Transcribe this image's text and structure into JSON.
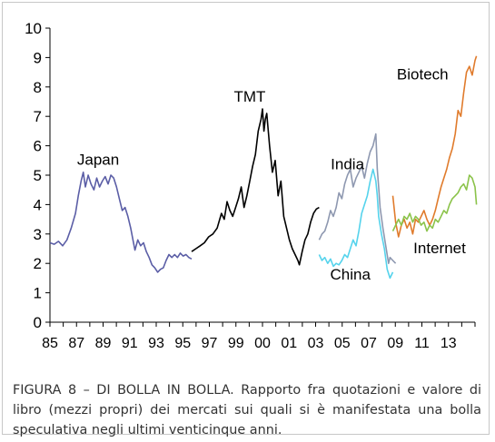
{
  "figure": {
    "label": "FIGURA 8 – DI BOLLA IN BOLLA.",
    "text": " Rapporto fra quotazioni e valore di libro (mezzi propri) dei mercati sui quali si è manifestata una bolla speculativa negli ultimi venticinque anni."
  },
  "chart_data": {
    "type": "line",
    "title": "",
    "xlabel": "",
    "ylabel": "",
    "xlim": [
      1985,
      2015
    ],
    "ylim": [
      0,
      10
    ],
    "grid": false,
    "legend": "none (series labeled inline)",
    "x_ticks": [
      "85",
      "87",
      "89",
      "91",
      "93",
      "95",
      "97",
      "99",
      "00",
      "01",
      "03",
      "05",
      "07",
      "09",
      "11",
      "13"
    ],
    "y_ticks": [
      "0",
      "1",
      "2",
      "3",
      "4",
      "5",
      "6",
      "7",
      "8",
      "9",
      "10"
    ],
    "series": [
      {
        "name": "Japan",
        "color": "#5b5ea6",
        "points": [
          [
            1985,
            2.7
          ],
          [
            1985.3,
            2.65
          ],
          [
            1985.6,
            2.75
          ],
          [
            1985.9,
            2.6
          ],
          [
            1986.2,
            2.8
          ],
          [
            1986.5,
            3.2
          ],
          [
            1986.8,
            3.7
          ],
          [
            1987.0,
            4.3
          ],
          [
            1987.2,
            4.8
          ],
          [
            1987.35,
            5.1
          ],
          [
            1987.5,
            4.6
          ],
          [
            1987.7,
            5.0
          ],
          [
            1987.9,
            4.7
          ],
          [
            1988.1,
            4.5
          ],
          [
            1988.3,
            4.9
          ],
          [
            1988.5,
            4.6
          ],
          [
            1988.7,
            4.8
          ],
          [
            1988.9,
            4.95
          ],
          [
            1989.1,
            4.7
          ],
          [
            1989.3,
            5.0
          ],
          [
            1989.5,
            4.9
          ],
          [
            1989.7,
            4.6
          ],
          [
            1989.9,
            4.2
          ],
          [
            1990.1,
            3.8
          ],
          [
            1990.3,
            3.9
          ],
          [
            1990.5,
            3.6
          ],
          [
            1990.7,
            3.2
          ],
          [
            1990.9,
            2.7
          ],
          [
            1991.0,
            2.45
          ],
          [
            1991.2,
            2.8
          ],
          [
            1991.4,
            2.6
          ],
          [
            1991.6,
            2.7
          ],
          [
            1991.8,
            2.4
          ],
          [
            1992.0,
            2.2
          ],
          [
            1992.2,
            1.95
          ],
          [
            1992.4,
            1.85
          ],
          [
            1992.6,
            1.7
          ],
          [
            1992.8,
            1.8
          ],
          [
            1993.0,
            1.85
          ],
          [
            1993.2,
            2.1
          ],
          [
            1993.4,
            2.3
          ],
          [
            1993.6,
            2.2
          ],
          [
            1993.8,
            2.3
          ],
          [
            1994.0,
            2.2
          ],
          [
            1994.2,
            2.35
          ],
          [
            1994.4,
            2.25
          ],
          [
            1994.6,
            2.3
          ],
          [
            1994.8,
            2.2
          ],
          [
            1995.0,
            2.15
          ]
        ]
      },
      {
        "name": "TMT",
        "color": "#000000",
        "points": [
          [
            1995.0,
            2.4
          ],
          [
            1995.3,
            2.5
          ],
          [
            1995.6,
            2.6
          ],
          [
            1995.9,
            2.7
          ],
          [
            1996.2,
            2.9
          ],
          [
            1996.5,
            3.0
          ],
          [
            1996.8,
            3.2
          ],
          [
            1997.1,
            3.7
          ],
          [
            1997.3,
            3.5
          ],
          [
            1997.5,
            4.1
          ],
          [
            1997.7,
            3.8
          ],
          [
            1997.9,
            3.6
          ],
          [
            1998.1,
            3.9
          ],
          [
            1998.3,
            4.2
          ],
          [
            1998.5,
            4.6
          ],
          [
            1998.7,
            3.9
          ],
          [
            1998.9,
            4.3
          ],
          [
            1999.1,
            4.8
          ],
          [
            1999.3,
            5.3
          ],
          [
            1999.5,
            5.7
          ],
          [
            1999.7,
            6.5
          ],
          [
            1999.9,
            6.9
          ],
          [
            2000.0,
            7.25
          ],
          [
            2000.1,
            6.5
          ],
          [
            2000.2,
            6.9
          ],
          [
            2000.3,
            7.1
          ],
          [
            2000.5,
            6.0
          ],
          [
            2000.7,
            5.1
          ],
          [
            2000.9,
            5.5
          ],
          [
            2001.1,
            4.3
          ],
          [
            2001.3,
            4.8
          ],
          [
            2001.5,
            3.6
          ],
          [
            2001.7,
            3.2
          ],
          [
            2001.9,
            2.8
          ],
          [
            2002.1,
            2.5
          ],
          [
            2002.3,
            2.3
          ],
          [
            2002.5,
            2.1
          ],
          [
            2002.6,
            1.95
          ],
          [
            2002.8,
            2.4
          ],
          [
            2003.0,
            2.8
          ],
          [
            2003.2,
            3.0
          ],
          [
            2003.4,
            3.4
          ],
          [
            2003.6,
            3.7
          ],
          [
            2003.8,
            3.85
          ],
          [
            2004.0,
            3.9
          ]
        ]
      },
      {
        "name": "India",
        "color": "#8e98b0",
        "points": [
          [
            2004.0,
            2.8
          ],
          [
            2004.2,
            3.0
          ],
          [
            2004.4,
            3.1
          ],
          [
            2004.6,
            3.4
          ],
          [
            2004.8,
            3.8
          ],
          [
            2005.0,
            3.6
          ],
          [
            2005.2,
            3.9
          ],
          [
            2005.4,
            4.4
          ],
          [
            2005.6,
            4.2
          ],
          [
            2005.8,
            4.7
          ],
          [
            2006.0,
            5.0
          ],
          [
            2006.2,
            5.2
          ],
          [
            2006.4,
            4.6
          ],
          [
            2006.6,
            4.9
          ],
          [
            2006.8,
            5.1
          ],
          [
            2007.0,
            5.3
          ],
          [
            2007.2,
            4.9
          ],
          [
            2007.4,
            5.4
          ],
          [
            2007.6,
            5.8
          ],
          [
            2007.8,
            6.0
          ],
          [
            2008.0,
            6.4
          ],
          [
            2008.1,
            5.2
          ],
          [
            2008.2,
            4.6
          ],
          [
            2008.3,
            3.9
          ],
          [
            2008.5,
            3.2
          ],
          [
            2008.7,
            2.6
          ],
          [
            2008.9,
            2.0
          ],
          [
            2009.0,
            2.2
          ],
          [
            2009.2,
            2.1
          ],
          [
            2009.4,
            2.0
          ]
        ]
      },
      {
        "name": "China",
        "color": "#55d3ec",
        "points": [
          [
            2004.0,
            2.3
          ],
          [
            2004.2,
            2.1
          ],
          [
            2004.4,
            2.2
          ],
          [
            2004.6,
            2.0
          ],
          [
            2004.8,
            2.15
          ],
          [
            2005.0,
            1.9
          ],
          [
            2005.2,
            2.0
          ],
          [
            2005.4,
            1.95
          ],
          [
            2005.6,
            2.1
          ],
          [
            2005.8,
            2.3
          ],
          [
            2006.0,
            2.2
          ],
          [
            2006.2,
            2.5
          ],
          [
            2006.4,
            2.8
          ],
          [
            2006.6,
            2.6
          ],
          [
            2006.8,
            3.1
          ],
          [
            2007.0,
            3.7
          ],
          [
            2007.2,
            4.0
          ],
          [
            2007.4,
            4.3
          ],
          [
            2007.6,
            4.8
          ],
          [
            2007.8,
            5.2
          ],
          [
            2008.0,
            4.8
          ],
          [
            2008.1,
            4.3
          ],
          [
            2008.2,
            3.6
          ],
          [
            2008.4,
            3.0
          ],
          [
            2008.6,
            2.5
          ],
          [
            2008.8,
            1.8
          ],
          [
            2009.0,
            1.5
          ],
          [
            2009.2,
            1.7
          ]
        ]
      },
      {
        "name": "Biotech",
        "color": "#e07b2c",
        "points": [
          [
            2009.2,
            4.3
          ],
          [
            2009.4,
            3.4
          ],
          [
            2009.6,
            2.9
          ],
          [
            2009.8,
            3.3
          ],
          [
            2010.0,
            3.5
          ],
          [
            2010.2,
            3.2
          ],
          [
            2010.4,
            3.4
          ],
          [
            2010.6,
            3.0
          ],
          [
            2010.8,
            3.5
          ],
          [
            2011.0,
            3.4
          ],
          [
            2011.2,
            3.6
          ],
          [
            2011.4,
            3.8
          ],
          [
            2011.6,
            3.5
          ],
          [
            2011.8,
            3.3
          ],
          [
            2012.0,
            3.5
          ],
          [
            2012.2,
            3.8
          ],
          [
            2012.4,
            4.2
          ],
          [
            2012.6,
            4.6
          ],
          [
            2012.8,
            4.9
          ],
          [
            2013.0,
            5.2
          ],
          [
            2013.2,
            5.6
          ],
          [
            2013.4,
            5.9
          ],
          [
            2013.6,
            6.4
          ],
          [
            2013.8,
            7.2
          ],
          [
            2014.0,
            7.0
          ],
          [
            2014.2,
            7.8
          ],
          [
            2014.4,
            8.5
          ],
          [
            2014.6,
            8.7
          ],
          [
            2014.8,
            8.4
          ],
          [
            2015.0,
            8.9
          ],
          [
            2015.1,
            9.05
          ]
        ]
      },
      {
        "name": "Internet",
        "color": "#8bc34a",
        "points": [
          [
            2009.2,
            3.1
          ],
          [
            2009.4,
            3.3
          ],
          [
            2009.6,
            3.5
          ],
          [
            2009.8,
            3.3
          ],
          [
            2010.0,
            3.6
          ],
          [
            2010.2,
            3.5
          ],
          [
            2010.4,
            3.7
          ],
          [
            2010.6,
            3.4
          ],
          [
            2010.8,
            3.6
          ],
          [
            2011.0,
            3.5
          ],
          [
            2011.2,
            3.3
          ],
          [
            2011.4,
            3.4
          ],
          [
            2011.6,
            3.1
          ],
          [
            2011.8,
            3.3
          ],
          [
            2012.0,
            3.2
          ],
          [
            2012.2,
            3.5
          ],
          [
            2012.4,
            3.4
          ],
          [
            2012.6,
            3.6
          ],
          [
            2012.8,
            3.8
          ],
          [
            2013.0,
            3.7
          ],
          [
            2013.2,
            4.0
          ],
          [
            2013.4,
            4.2
          ],
          [
            2013.6,
            4.3
          ],
          [
            2013.8,
            4.4
          ],
          [
            2014.0,
            4.6
          ],
          [
            2014.2,
            4.7
          ],
          [
            2014.4,
            4.5
          ],
          [
            2014.6,
            5.0
          ],
          [
            2014.8,
            4.9
          ],
          [
            2015.0,
            4.6
          ],
          [
            2015.1,
            4.0
          ]
        ]
      }
    ],
    "labels": [
      {
        "text": "Japan",
        "x": 1988.4,
        "y": 5.35
      },
      {
        "text": "TMT",
        "x": 1999.1,
        "y": 7.5
      },
      {
        "text": "India",
        "x": 2006.0,
        "y": 5.2
      },
      {
        "text": "China",
        "x": 2006.2,
        "y": 1.45
      },
      {
        "text": "Biotech",
        "x": 2011.3,
        "y": 8.25
      },
      {
        "text": "Internet",
        "x": 2012.5,
        "y": 2.35
      }
    ]
  }
}
